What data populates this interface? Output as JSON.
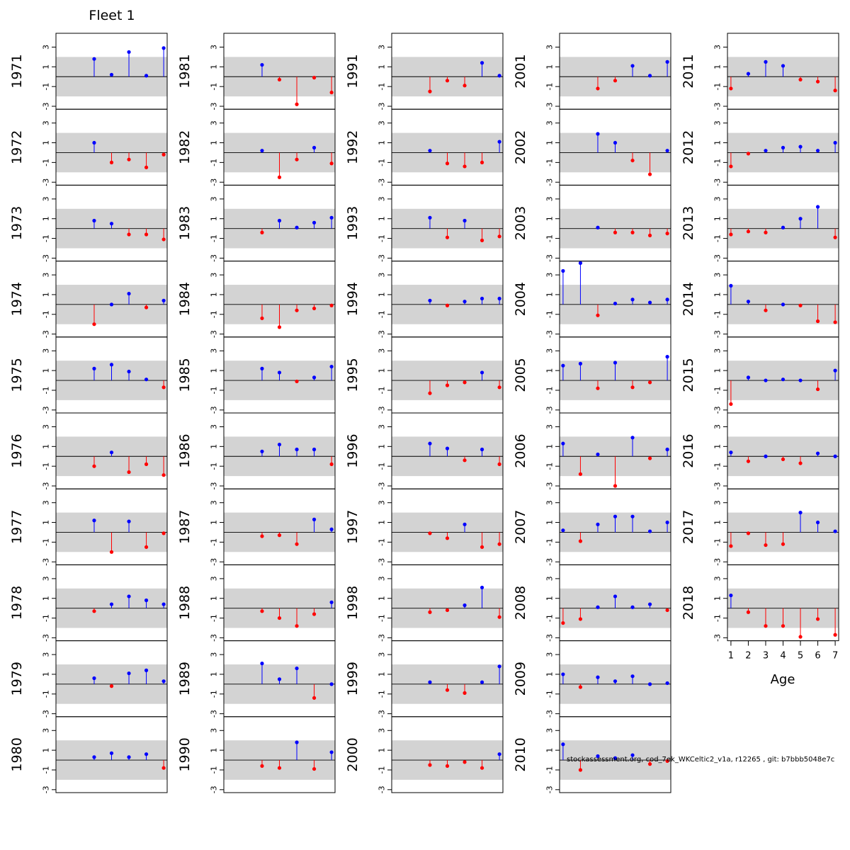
{
  "chart_data": {
    "type": "scatter",
    "title": "Fleet 1",
    "xlabel": "Age",
    "x_ticks": [
      "1",
      "2",
      "3",
      "4",
      "5",
      "6",
      "7"
    ],
    "y_ticks": [
      "3",
      "1",
      "-1",
      "-3"
    ],
    "ylim": [
      -3.3,
      4.4
    ],
    "xlim": [
      0.8,
      7.2
    ],
    "band": [
      -2,
      2
    ],
    "colors": {
      "positive": "#0000ff",
      "negative": "#ff0000",
      "band": "#d3d3d3"
    },
    "panels": [
      {
        "year": "1971",
        "points": [
          [
            3,
            1.8
          ],
          [
            4,
            0.2
          ],
          [
            5,
            2.5
          ],
          [
            6,
            0.1
          ],
          [
            7,
            2.9
          ]
        ]
      },
      {
        "year": "1972",
        "points": [
          [
            3,
            1.0
          ],
          [
            4,
            -1.0
          ],
          [
            5,
            -0.7
          ],
          [
            6,
            -1.5
          ],
          [
            7,
            -0.2
          ]
        ]
      },
      {
        "year": "1973",
        "points": [
          [
            3,
            0.8
          ],
          [
            4,
            0.5
          ],
          [
            5,
            -0.6
          ],
          [
            6,
            -0.6
          ],
          [
            7,
            -1.1
          ]
        ]
      },
      {
        "year": "1974",
        "points": [
          [
            3,
            -2.0
          ],
          [
            4,
            0.0
          ],
          [
            5,
            1.1
          ],
          [
            6,
            -0.3
          ],
          [
            7,
            0.4
          ]
        ]
      },
      {
        "year": "1975",
        "points": [
          [
            3,
            1.2
          ],
          [
            4,
            1.6
          ],
          [
            5,
            0.9
          ],
          [
            6,
            0.1
          ],
          [
            7,
            -0.7
          ]
        ]
      },
      {
        "year": "1976",
        "points": [
          [
            3,
            -1.0
          ],
          [
            4,
            0.4
          ],
          [
            5,
            -1.6
          ],
          [
            6,
            -0.8
          ],
          [
            7,
            -1.9
          ]
        ]
      },
      {
        "year": "1977",
        "points": [
          [
            3,
            1.2
          ],
          [
            4,
            -2.0
          ],
          [
            5,
            1.1
          ],
          [
            6,
            -1.5
          ],
          [
            7,
            -0.1
          ]
        ]
      },
      {
        "year": "1978",
        "points": [
          [
            3,
            -0.3
          ],
          [
            4,
            0.4
          ],
          [
            5,
            1.2
          ],
          [
            6,
            0.8
          ],
          [
            7,
            0.4
          ]
        ]
      },
      {
        "year": "1979",
        "points": [
          [
            3,
            0.6
          ],
          [
            4,
            -0.2
          ],
          [
            5,
            1.1
          ],
          [
            6,
            1.4
          ],
          [
            7,
            0.3
          ]
        ]
      },
      {
        "year": "1980",
        "points": [
          [
            3,
            0.3
          ],
          [
            4,
            0.7
          ],
          [
            5,
            0.3
          ],
          [
            6,
            0.6
          ],
          [
            7,
            -0.8
          ]
        ]
      },
      {
        "year": "1981",
        "points": [
          [
            3,
            1.2
          ],
          [
            4,
            -0.3
          ],
          [
            5,
            -2.8
          ],
          [
            6,
            -0.1
          ],
          [
            7,
            -1.6
          ]
        ]
      },
      {
        "year": "1982",
        "points": [
          [
            3,
            0.2
          ],
          [
            4,
            -2.5
          ],
          [
            5,
            -0.7
          ],
          [
            6,
            0.5
          ],
          [
            7,
            -1.1
          ]
        ]
      },
      {
        "year": "1983",
        "points": [
          [
            3,
            -0.4
          ],
          [
            4,
            0.8
          ],
          [
            5,
            0.1
          ],
          [
            6,
            0.6
          ],
          [
            7,
            1.1
          ]
        ]
      },
      {
        "year": "1984",
        "points": [
          [
            3,
            -1.4
          ],
          [
            4,
            -2.3
          ],
          [
            5,
            -0.6
          ],
          [
            6,
            -0.4
          ],
          [
            7,
            -0.1
          ]
        ]
      },
      {
        "year": "1985",
        "points": [
          [
            3,
            1.2
          ],
          [
            4,
            0.8
          ],
          [
            5,
            -0.1
          ],
          [
            6,
            0.3
          ],
          [
            7,
            1.4
          ]
        ]
      },
      {
        "year": "1986",
        "points": [
          [
            3,
            0.5
          ],
          [
            4,
            1.2
          ],
          [
            5,
            0.7
          ],
          [
            6,
            0.7
          ],
          [
            7,
            -0.8
          ]
        ]
      },
      {
        "year": "1987",
        "points": [
          [
            3,
            -0.4
          ],
          [
            4,
            -0.3
          ],
          [
            5,
            -1.2
          ],
          [
            6,
            1.3
          ],
          [
            7,
            0.3
          ]
        ]
      },
      {
        "year": "1988",
        "points": [
          [
            3,
            -0.3
          ],
          [
            4,
            -1.0
          ],
          [
            5,
            -1.8
          ],
          [
            6,
            -0.6
          ],
          [
            7,
            0.6
          ]
        ]
      },
      {
        "year": "1989",
        "points": [
          [
            3,
            2.1
          ],
          [
            4,
            0.5
          ],
          [
            5,
            1.6
          ],
          [
            6,
            -1.4
          ],
          [
            7,
            0.0
          ]
        ]
      },
      {
        "year": "1990",
        "points": [
          [
            3,
            -0.6
          ],
          [
            4,
            -0.8
          ],
          [
            5,
            1.8
          ],
          [
            6,
            -0.9
          ],
          [
            7,
            0.8
          ]
        ]
      },
      {
        "year": "1991",
        "points": [
          [
            3,
            -1.5
          ],
          [
            4,
            -0.4
          ],
          [
            5,
            -0.9
          ],
          [
            6,
            1.4
          ],
          [
            7,
            0.1
          ]
        ]
      },
      {
        "year": "1992",
        "points": [
          [
            3,
            0.2
          ],
          [
            4,
            -1.1
          ],
          [
            5,
            -1.4
          ],
          [
            6,
            -1.0
          ],
          [
            7,
            1.1
          ]
        ]
      },
      {
        "year": "1993",
        "points": [
          [
            3,
            1.1
          ],
          [
            4,
            -0.9
          ],
          [
            5,
            0.8
          ],
          [
            6,
            -1.2
          ],
          [
            7,
            -0.8
          ]
        ]
      },
      {
        "year": "1994",
        "points": [
          [
            3,
            0.4
          ],
          [
            4,
            -0.1
          ],
          [
            5,
            0.3
          ],
          [
            6,
            0.6
          ],
          [
            7,
            0.6
          ]
        ]
      },
      {
        "year": "1995",
        "points": [
          [
            3,
            -1.3
          ],
          [
            4,
            -0.5
          ],
          [
            5,
            -0.2
          ],
          [
            6,
            0.8
          ],
          [
            7,
            -0.7
          ]
        ]
      },
      {
        "year": "1996",
        "points": [
          [
            3,
            1.3
          ],
          [
            4,
            0.8
          ],
          [
            5,
            -0.4
          ],
          [
            6,
            0.7
          ],
          [
            7,
            -0.8
          ]
        ]
      },
      {
        "year": "1997",
        "points": [
          [
            3,
            -0.1
          ],
          [
            4,
            -0.6
          ],
          [
            5,
            0.8
          ],
          [
            6,
            -1.5
          ],
          [
            7,
            -1.2
          ]
        ]
      },
      {
        "year": "1998",
        "points": [
          [
            3,
            -0.4
          ],
          [
            4,
            -0.2
          ],
          [
            5,
            0.3
          ],
          [
            6,
            2.1
          ],
          [
            7,
            -0.9
          ]
        ]
      },
      {
        "year": "1999",
        "points": [
          [
            3,
            0.2
          ],
          [
            4,
            -0.6
          ],
          [
            5,
            -0.9
          ],
          [
            6,
            0.2
          ],
          [
            7,
            1.8
          ]
        ]
      },
      {
        "year": "2000",
        "points": [
          [
            3,
            -0.5
          ],
          [
            4,
            -0.6
          ],
          [
            5,
            -0.2
          ],
          [
            6,
            -0.8
          ],
          [
            7,
            0.6
          ]
        ]
      },
      {
        "year": "2001",
        "points": [
          [
            3,
            -1.2
          ],
          [
            4,
            -0.4
          ],
          [
            5,
            1.1
          ],
          [
            6,
            0.1
          ],
          [
            7,
            1.5
          ]
        ]
      },
      {
        "year": "2002",
        "points": [
          [
            3,
            1.9
          ],
          [
            4,
            1.0
          ],
          [
            5,
            -0.8
          ],
          [
            6,
            -2.2
          ],
          [
            7,
            0.2
          ]
        ]
      },
      {
        "year": "2003",
        "points": [
          [
            3,
            0.1
          ],
          [
            4,
            -0.4
          ],
          [
            5,
            -0.4
          ],
          [
            6,
            -0.7
          ],
          [
            7,
            -0.5
          ]
        ]
      },
      {
        "year": "2004",
        "points": [
          [
            1,
            3.4
          ],
          [
            2,
            4.2
          ],
          [
            3,
            -1.1
          ],
          [
            4,
            0.1
          ],
          [
            5,
            0.5
          ],
          [
            6,
            0.2
          ],
          [
            7,
            0.5
          ]
        ]
      },
      {
        "year": "2005",
        "points": [
          [
            1,
            1.5
          ],
          [
            2,
            1.7
          ],
          [
            3,
            -0.8
          ],
          [
            4,
            1.8
          ],
          [
            5,
            -0.7
          ],
          [
            6,
            -0.2
          ],
          [
            7,
            2.4
          ]
        ]
      },
      {
        "year": "2006",
        "points": [
          [
            1,
            1.3
          ],
          [
            2,
            -1.8
          ],
          [
            3,
            0.2
          ],
          [
            4,
            -3.0
          ],
          [
            5,
            1.9
          ],
          [
            6,
            -0.2
          ],
          [
            7,
            0.7
          ]
        ]
      },
      {
        "year": "2007",
        "points": [
          [
            1,
            0.2
          ],
          [
            2,
            -0.9
          ],
          [
            3,
            0.8
          ],
          [
            4,
            1.6
          ],
          [
            5,
            1.6
          ],
          [
            6,
            0.1
          ],
          [
            7,
            1.0
          ]
        ]
      },
      {
        "year": "2008",
        "points": [
          [
            1,
            -1.5
          ],
          [
            2,
            -1.1
          ],
          [
            3,
            0.1
          ],
          [
            4,
            1.2
          ],
          [
            5,
            0.1
          ],
          [
            6,
            0.4
          ],
          [
            7,
            -0.2
          ]
        ]
      },
      {
        "year": "2009",
        "points": [
          [
            1,
            1.0
          ],
          [
            2,
            -0.3
          ],
          [
            3,
            0.7
          ],
          [
            4,
            0.3
          ],
          [
            5,
            0.8
          ],
          [
            6,
            0.0
          ],
          [
            7,
            0.1
          ]
        ]
      },
      {
        "year": "2010",
        "points": [
          [
            1,
            1.6
          ],
          [
            2,
            -1.0
          ],
          [
            3,
            0.4
          ],
          [
            4,
            0.2
          ],
          [
            5,
            0.5
          ],
          [
            6,
            -0.4
          ],
          [
            7,
            -0.1
          ]
        ]
      },
      {
        "year": "2011",
        "points": [
          [
            1,
            -1.2
          ],
          [
            2,
            0.3
          ],
          [
            3,
            1.5
          ],
          [
            4,
            1.1
          ],
          [
            5,
            -0.3
          ],
          [
            6,
            -0.5
          ],
          [
            7,
            -1.4
          ]
        ]
      },
      {
        "year": "2012",
        "points": [
          [
            1,
            -1.4
          ],
          [
            2,
            -0.1
          ],
          [
            3,
            0.2
          ],
          [
            4,
            0.5
          ],
          [
            5,
            0.6
          ],
          [
            6,
            0.2
          ],
          [
            7,
            1.0
          ]
        ]
      },
      {
        "year": "2013",
        "points": [
          [
            1,
            -0.6
          ],
          [
            2,
            -0.3
          ],
          [
            3,
            -0.4
          ],
          [
            4,
            0.1
          ],
          [
            5,
            1.0
          ],
          [
            6,
            2.2
          ],
          [
            7,
            -0.9
          ]
        ]
      },
      {
        "year": "2014",
        "points": [
          [
            1,
            1.9
          ],
          [
            2,
            0.3
          ],
          [
            3,
            -0.6
          ],
          [
            4,
            0.0
          ],
          [
            5,
            -0.1
          ],
          [
            6,
            -1.7
          ],
          [
            7,
            -1.8
          ]
        ]
      },
      {
        "year": "2015",
        "points": [
          [
            1,
            -2.4
          ],
          [
            2,
            0.3
          ],
          [
            3,
            0.0
          ],
          [
            4,
            0.1
          ],
          [
            5,
            0.0
          ],
          [
            6,
            -0.9
          ],
          [
            7,
            1.0
          ]
        ]
      },
      {
        "year": "2016",
        "points": [
          [
            1,
            0.4
          ],
          [
            2,
            -0.5
          ],
          [
            3,
            0.0
          ],
          [
            4,
            -0.3
          ],
          [
            5,
            -0.7
          ],
          [
            6,
            0.3
          ],
          [
            7,
            0.0
          ]
        ]
      },
      {
        "year": "2017",
        "points": [
          [
            1,
            -1.4
          ],
          [
            2,
            -0.1
          ],
          [
            3,
            -1.3
          ],
          [
            4,
            -1.2
          ],
          [
            5,
            2.0
          ],
          [
            6,
            1.0
          ],
          [
            7,
            0.1
          ]
        ]
      },
      {
        "year": "2018",
        "points": [
          [
            1,
            1.3
          ],
          [
            2,
            -0.4
          ],
          [
            3,
            -1.8
          ],
          [
            4,
            -1.8
          ],
          [
            5,
            -2.9
          ],
          [
            6,
            -1.1
          ],
          [
            7,
            -2.7
          ]
        ]
      }
    ]
  },
  "footer": "stockassessment.org, cod_7ek_WKCeltic2_v1a, r12265 , git: b7bbb5048e7c"
}
